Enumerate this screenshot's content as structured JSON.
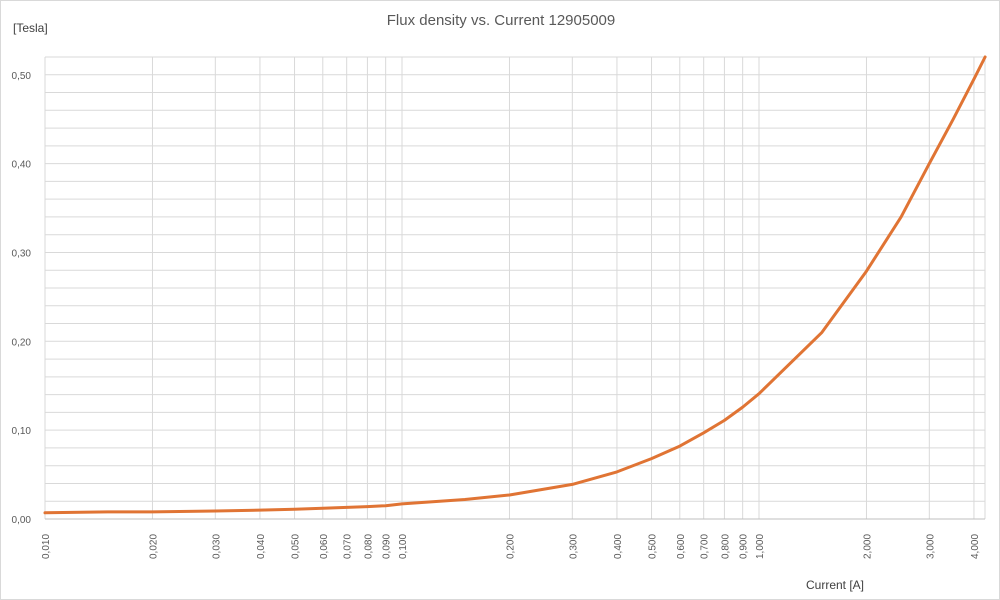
{
  "chart_data": {
    "type": "line",
    "title": "Flux density vs. Current 12905009",
    "xlabel": "Current [A]",
    "ylabel": "[Tesla]",
    "x_scale": "log",
    "xlim": [
      0.01,
      4.3
    ],
    "ylim": [
      0,
      0.52
    ],
    "grid": true,
    "legend": "none",
    "x_ticks": [
      0.01,
      0.02,
      0.03,
      0.04,
      0.05,
      0.06,
      0.07,
      0.08,
      0.09,
      0.1,
      0.2,
      0.3,
      0.4,
      0.5,
      0.6,
      0.7,
      0.8,
      0.9,
      1,
      2,
      3,
      4
    ],
    "x_tick_labels": [
      "0,010",
      "0,020",
      "0,030",
      "0,040",
      "0,050",
      "0,060",
      "0,070",
      "0,080",
      "0,090",
      "0,100",
      "0,200",
      "0,300",
      "0,400",
      "0,500",
      "0,600",
      "0,700",
      "0,800",
      "0,900",
      "1,000",
      "2,000",
      "3,000",
      "4,000"
    ],
    "y_ticks": [
      0,
      0.1,
      0.2,
      0.3,
      0.4,
      0.5
    ],
    "y_tick_labels": [
      "0,00",
      "0,10",
      "0,20",
      "0,30",
      "0,40",
      "0,50"
    ],
    "y_minor_step": 0.02,
    "series": [
      {
        "color": "#E07434",
        "x": [
          0.01,
          0.015,
          0.02,
          0.03,
          0.04,
          0.05,
          0.06,
          0.07,
          0.08,
          0.09,
          0.1,
          0.15,
          0.2,
          0.3,
          0.4,
          0.5,
          0.6,
          0.7,
          0.8,
          0.9,
          1,
          1.5,
          2,
          2.5,
          3,
          3.5,
          4,
          4.3
        ],
        "y": [
          0.007,
          0.008,
          0.008,
          0.009,
          0.01,
          0.011,
          0.012,
          0.013,
          0.014,
          0.015,
          0.017,
          0.022,
          0.027,
          0.039,
          0.053,
          0.068,
          0.082,
          0.097,
          0.111,
          0.126,
          0.141,
          0.21,
          0.279,
          0.34,
          0.4,
          0.45,
          0.495,
          0.52
        ]
      }
    ]
  }
}
